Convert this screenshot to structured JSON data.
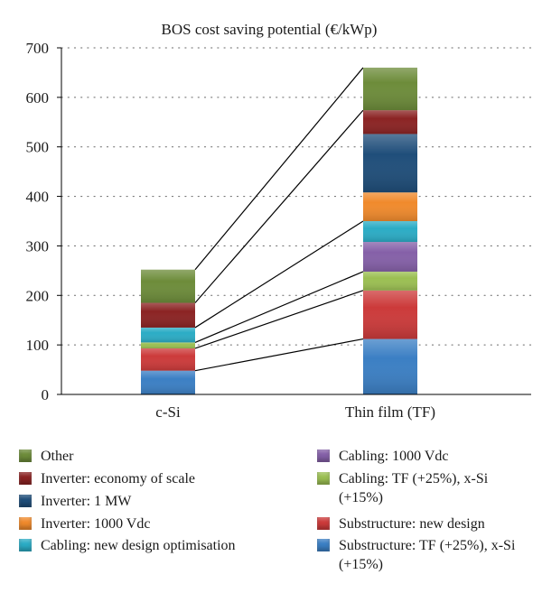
{
  "chart_data": {
    "type": "bar",
    "stacked": true,
    "title": "BOS cost saving potential (€/kWp)",
    "xlabel": "",
    "ylabel": "",
    "categories": [
      "c-Si",
      "Thin film (TF)"
    ],
    "ylim": [
      0,
      700
    ],
    "yticks": [
      "0",
      "100",
      "200",
      "300",
      "400",
      "500",
      "600",
      "700"
    ],
    "grid": "horizontal dotted",
    "legend_position": "bottom",
    "connector_lines": true,
    "series": [
      {
        "name": "Substructure: TF (+25%), x-Si (+15%)",
        "color": "#3b7fc4",
        "values": [
          48,
          112
        ]
      },
      {
        "name": "Substructure: new design",
        "color": "#cc3a3a",
        "values": [
          45,
          98
        ]
      },
      {
        "name": "Cabling: TF (+25%), x-Si (+15%)",
        "color": "#9bbf52",
        "values": [
          12,
          38
        ]
      },
      {
        "name": "Cabling: 1000 Vdc",
        "color": "#8560a8",
        "values": [
          0,
          60
        ]
      },
      {
        "name": "Cabling: new design optimisation",
        "color": "#2bacc5",
        "values": [
          30,
          42
        ]
      },
      {
        "name": "Inverter: 1000 Vdc",
        "color": "#f08a2c",
        "values": [
          0,
          58
        ]
      },
      {
        "name": "Inverter: 1 MW",
        "color": "#1f4e7a",
        "values": [
          0,
          118
        ]
      },
      {
        "name": "Inverter: economy of scale",
        "color": "#8b2323",
        "values": [
          50,
          48
        ]
      },
      {
        "name": "Other",
        "color": "#6d8c3a",
        "values": [
          67,
          86
        ]
      }
    ]
  },
  "legend": {
    "left": [
      {
        "label": "Other",
        "color": "#6d8c3a"
      },
      {
        "label": "Inverter: economy of scale",
        "color": "#8b2323"
      },
      {
        "label": "Inverter: 1 MW",
        "color": "#1f4e7a"
      },
      {
        "label": "Inverter: 1000 Vdc",
        "color": "#f08a2c"
      },
      {
        "label": "Cabling: new design optimisation",
        "color": "#2bacc5"
      }
    ],
    "right": [
      {
        "label": "Cabling: 1000 Vdc",
        "color": "#8560a8"
      },
      {
        "label": "Cabling: TF (+25%), x-Si (+15%)",
        "color": "#9bbf52"
      },
      {
        "label": "Substructure: new design",
        "color": "#cc3a3a"
      },
      {
        "label": "Substructure: TF (+25%), x-Si (+15%)",
        "color": "#3b7fc4"
      }
    ]
  }
}
